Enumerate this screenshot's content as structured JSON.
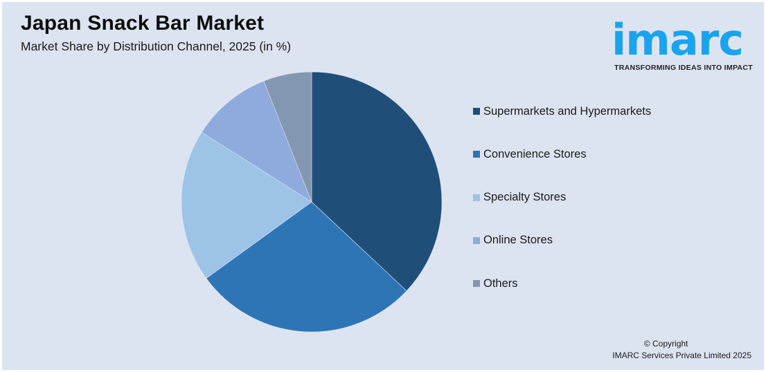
{
  "header": {
    "title": "Japan Snack Bar Market",
    "subtitle": "Market Share by Distribution Channel, 2025 (in %)"
  },
  "logo": {
    "word": "imarc",
    "tagline": "TRANSFORMING IDEAS INTO IMPACT",
    "color": "#1aa3ef"
  },
  "footer": {
    "copyright_line1": "© Copyright",
    "copyright_line2": "IMARC Services Private Limited 2025"
  },
  "chart_data": {
    "type": "pie",
    "title": "Japan Snack Bar Market",
    "subtitle": "Market Share by Distribution Channel, 2025 (in %)",
    "categories": [
      "Supermarkets and Hypermarkets",
      "Convenience Stores",
      "Specialty Stores",
      "Online Stores",
      "Others"
    ],
    "values": [
      37,
      28,
      19,
      10,
      6
    ],
    "colors": [
      "#1f4e79",
      "#2e75b6",
      "#9dc3e6",
      "#8faadc",
      "#8497b0"
    ],
    "start_angle_deg": 0,
    "direction": "clockwise",
    "legend_position": "right",
    "data_labels": false
  }
}
